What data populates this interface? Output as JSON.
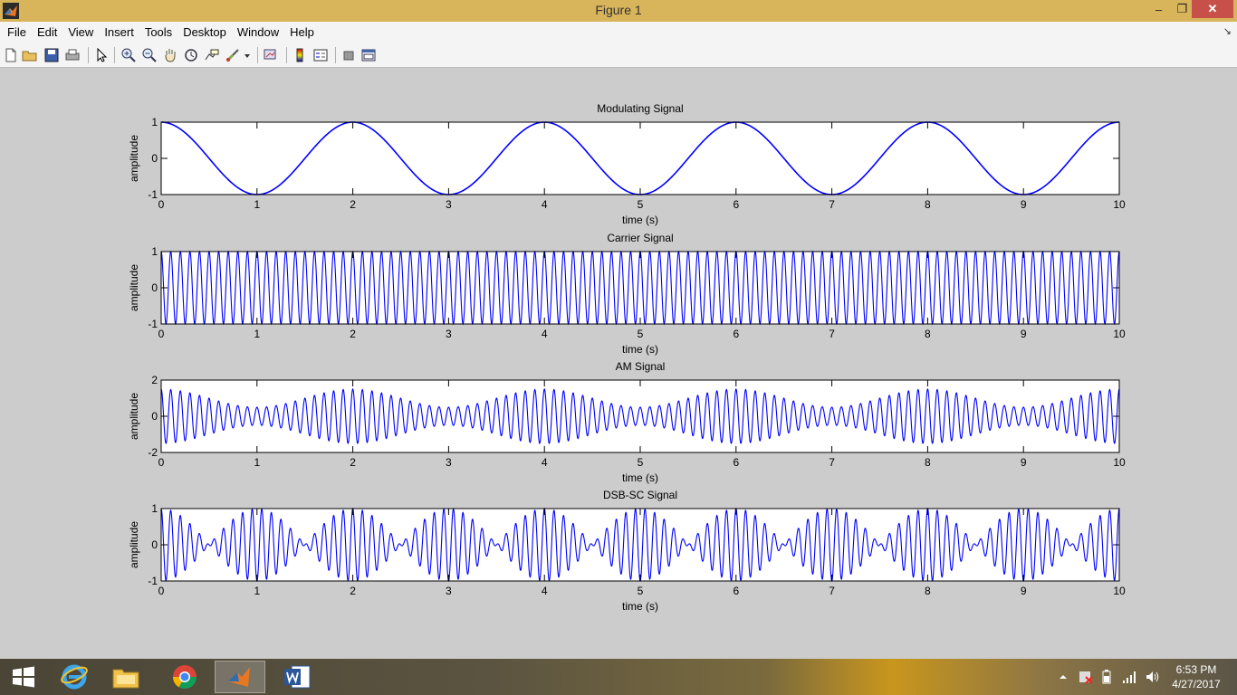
{
  "window": {
    "title": "Figure 1"
  },
  "menubar": {
    "items": [
      "File",
      "Edit",
      "View",
      "Insert",
      "Tools",
      "Desktop",
      "Window",
      "Help"
    ]
  },
  "toolbar": {
    "icons": [
      "new-figure-icon",
      "open-file-icon",
      "save-icon",
      "print-icon",
      "edit-plot-arrow-icon",
      "zoom-in-icon",
      "zoom-out-icon",
      "pan-hand-icon",
      "rotate-3d-icon",
      "data-cursor-icon",
      "brush-icon",
      "link-plot-icon",
      "colorbar-icon",
      "legend-icon",
      "hide-plot-tools-icon",
      "show-plot-tools-icon"
    ]
  },
  "colors": {
    "line": "#0000ff",
    "figure_bg": "#cccccc",
    "axes_bg": "#ffffff"
  },
  "chart_data": [
    {
      "type": "line",
      "title": "Modulating Signal",
      "xlabel": "time (s)",
      "ylabel": "amplitude",
      "xlim": [
        0,
        10
      ],
      "ylim": [
        -1,
        1
      ],
      "xticks": [
        0,
        1,
        2,
        3,
        4,
        5,
        6,
        7,
        8,
        9,
        10
      ],
      "yticks": [
        -1,
        0,
        1
      ],
      "series": [
        {
          "name": "modulating",
          "formula": "cos(2*pi*0.5*t)",
          "freq_hz": 0.5
        }
      ]
    },
    {
      "type": "line",
      "title": "Carrier Signal",
      "xlabel": "time (s)",
      "ylabel": "amplitude",
      "xlim": [
        0,
        10
      ],
      "ylim": [
        -1,
        1
      ],
      "xticks": [
        0,
        1,
        2,
        3,
        4,
        5,
        6,
        7,
        8,
        9,
        10
      ],
      "yticks": [
        -1,
        0,
        1
      ],
      "series": [
        {
          "name": "carrier",
          "formula": "cos(2*pi*10*t)",
          "freq_hz": 10
        }
      ]
    },
    {
      "type": "line",
      "title": "AM Signal",
      "xlabel": "time (s)",
      "ylabel": "amplitude",
      "xlim": [
        0,
        10
      ],
      "ylim": [
        -2,
        2
      ],
      "xticks": [
        0,
        1,
        2,
        3,
        4,
        5,
        6,
        7,
        8,
        9,
        10
      ],
      "yticks": [
        -2,
        0,
        2
      ],
      "series": [
        {
          "name": "am",
          "formula": "(1+0.5*cos(2*pi*0.5*t))*cos(2*pi*10*t)",
          "carrier_hz": 10,
          "message_hz": 0.5,
          "modulation_index": 0.5
        }
      ]
    },
    {
      "type": "line",
      "title": "DSB-SC Signal",
      "xlabel": "time (s)",
      "ylabel": "amplitude",
      "xlim": [
        0,
        10
      ],
      "ylim": [
        -1,
        1
      ],
      "xticks": [
        0,
        1,
        2,
        3,
        4,
        5,
        6,
        7,
        8,
        9,
        10
      ],
      "yticks": [
        -1,
        0,
        1
      ],
      "series": [
        {
          "name": "dsbsc",
          "formula": "cos(2*pi*0.5*t)*cos(2*pi*10*t)",
          "carrier_hz": 10,
          "message_hz": 0.5
        }
      ]
    }
  ],
  "taskbar": {
    "apps": [
      "internet-explorer-icon",
      "file-explorer-icon",
      "chrome-icon",
      "matlab-icon",
      "word-icon"
    ],
    "clock_time": "6:53 PM",
    "clock_date": "4/27/2017"
  }
}
